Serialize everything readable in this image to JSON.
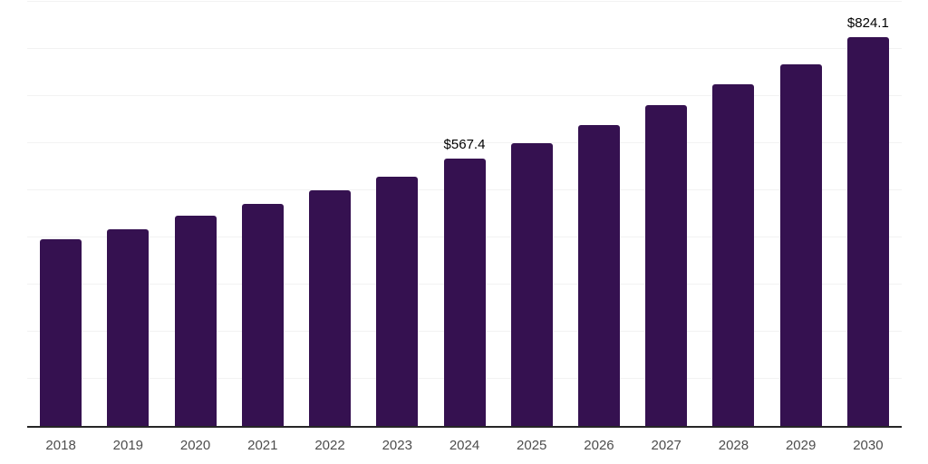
{
  "chart_data": {
    "type": "bar",
    "title": "",
    "xlabel": "",
    "ylabel": "",
    "categories": [
      "2018",
      "2019",
      "2020",
      "2021",
      "2022",
      "2023",
      "2024",
      "2025",
      "2026",
      "2027",
      "2028",
      "2029",
      "2030"
    ],
    "values": [
      395.6,
      416.6,
      445.3,
      472.0,
      500.7,
      529.4,
      567.4,
      600.1,
      638.3,
      680.3,
      724.3,
      768.2,
      824.1
    ],
    "data_labels": [
      {
        "category": "2024",
        "text": "$567.4"
      },
      {
        "category": "2030",
        "text": "$824.1"
      }
    ],
    "ylim": [
      0,
      900
    ],
    "grid_step": 100,
    "grid": true,
    "legend_position": "none",
    "y_axis_labels_visible": false,
    "colors": {
      "bar": "#351150",
      "gridline": "#f2f2f2",
      "axis": "#262626",
      "tick_label": "#4d4d4d",
      "data_label": "#000000",
      "background": "#ffffff"
    }
  }
}
